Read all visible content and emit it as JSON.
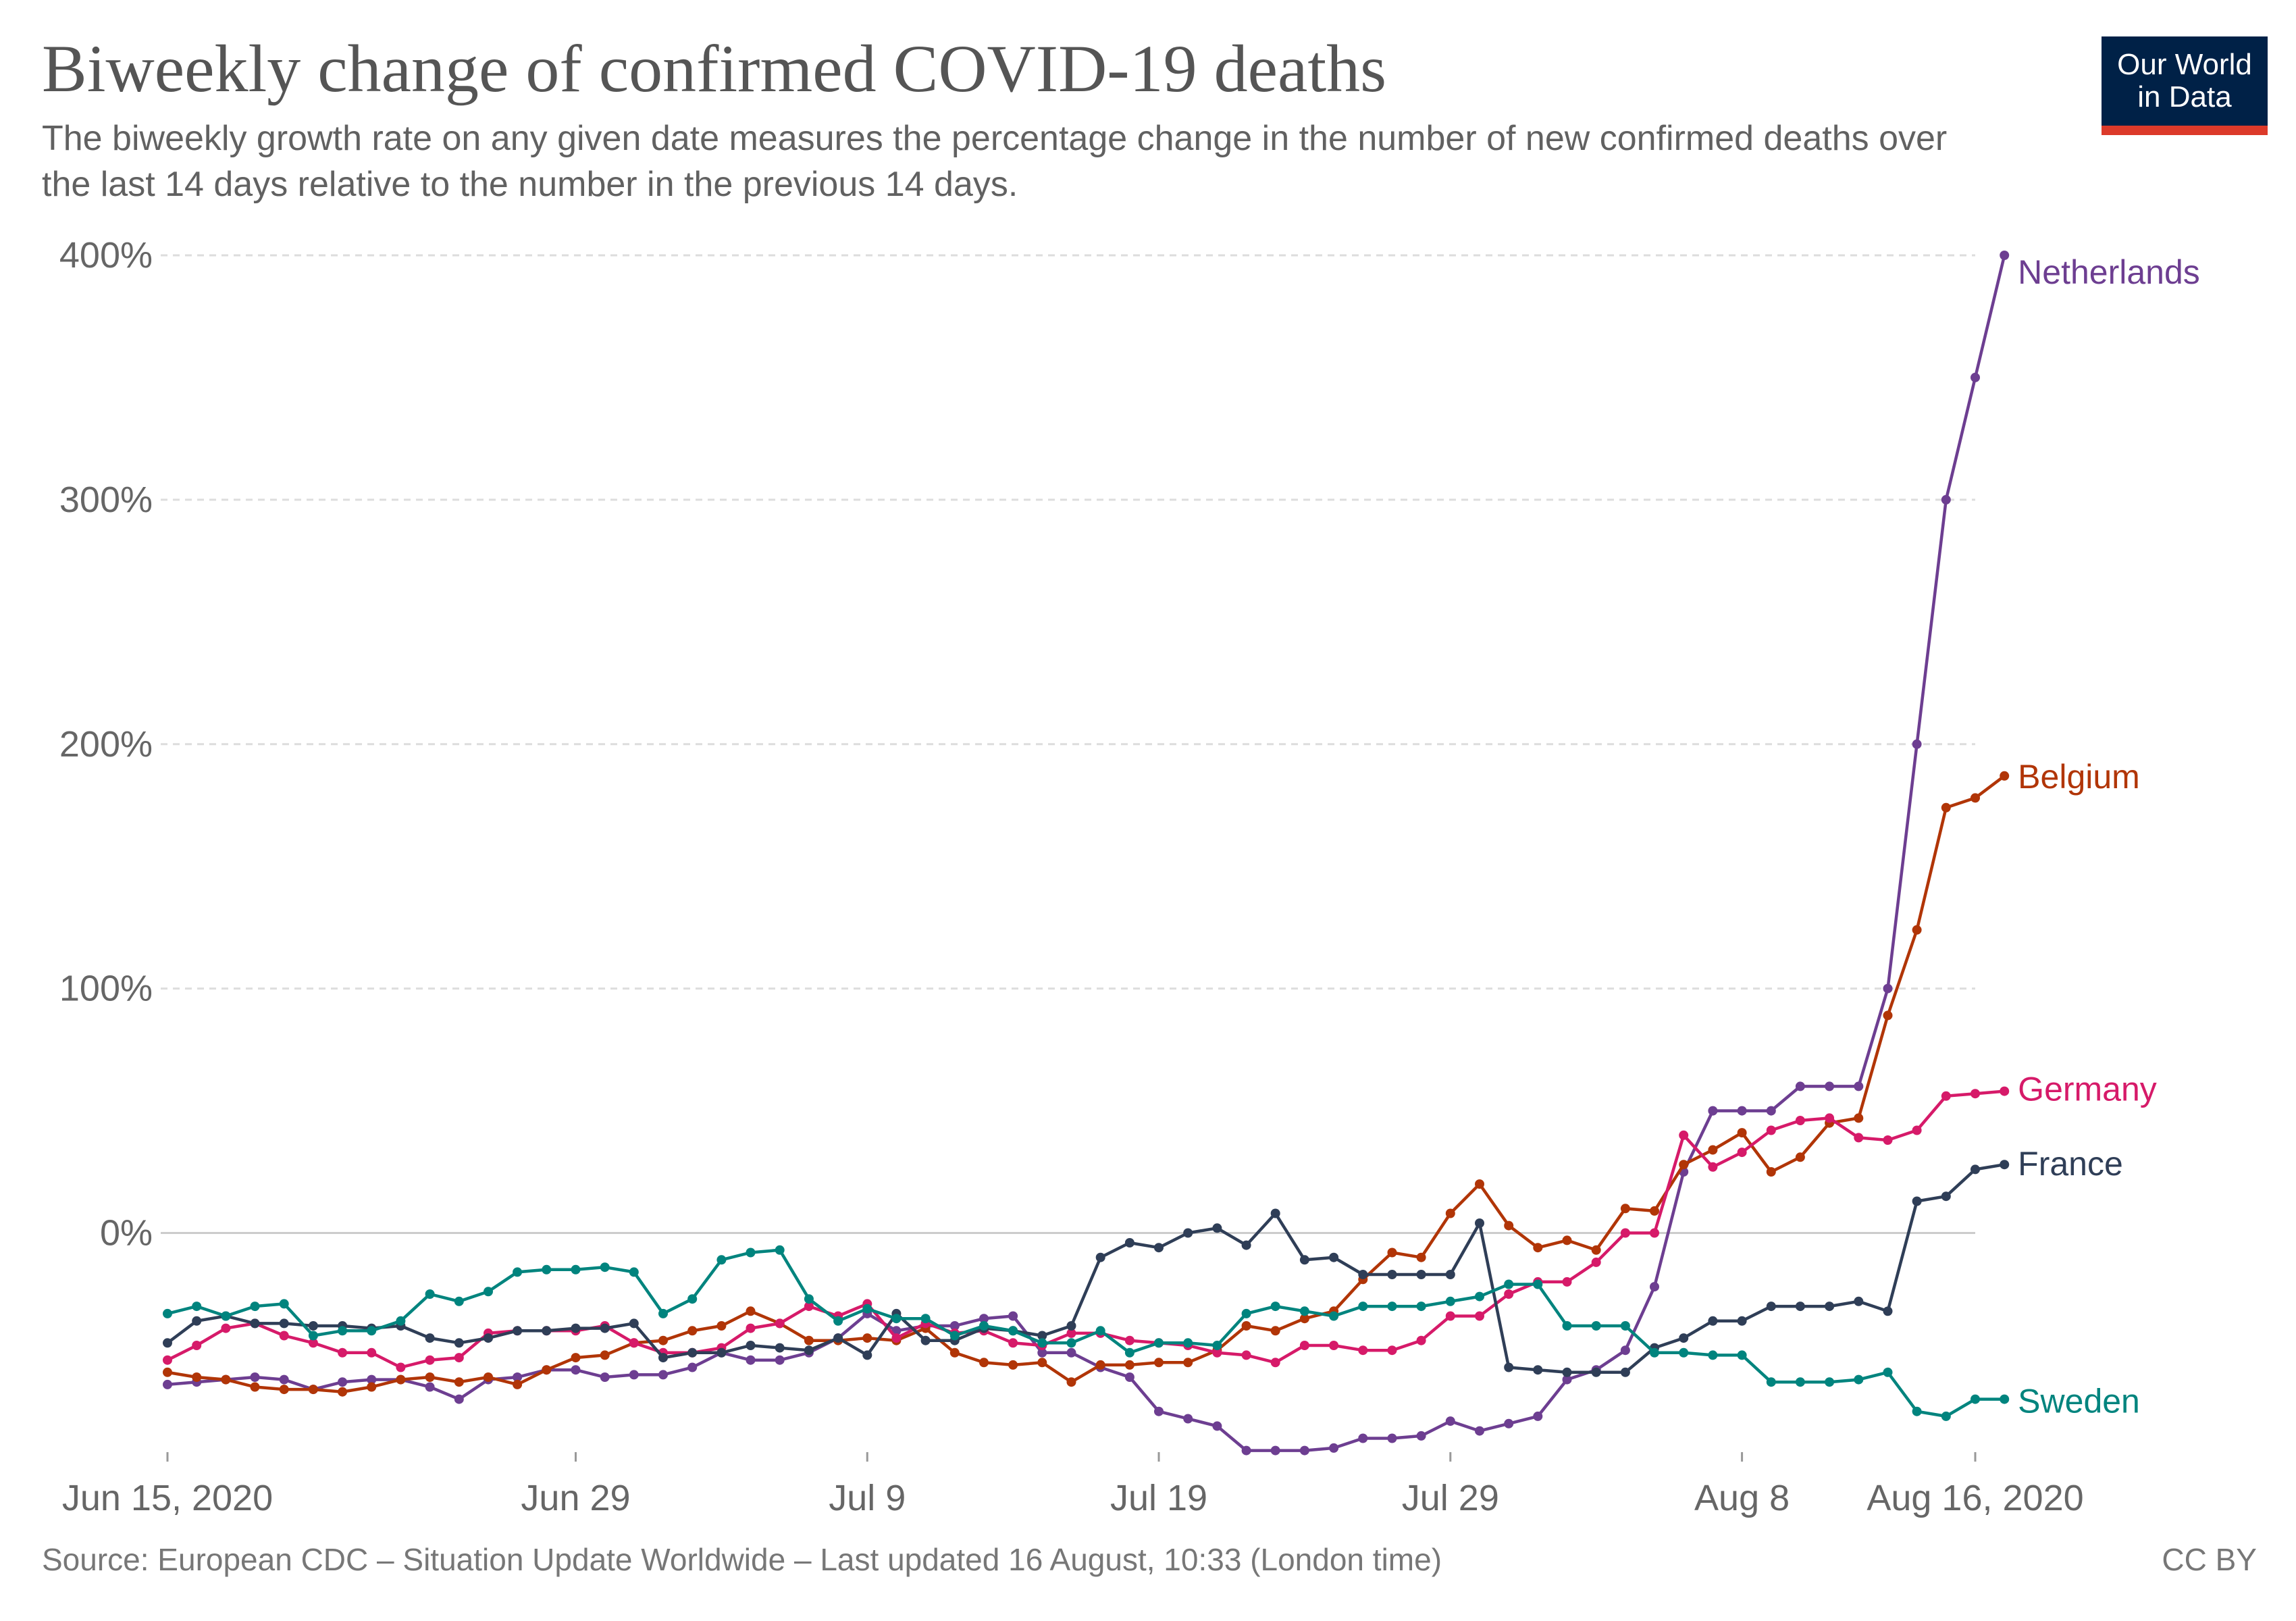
{
  "header": {
    "title": "Biweekly change of confirmed COVID-19 deaths",
    "subtitle": "The biweekly growth rate on any given date measures the percentage change in the number of new confirmed deaths over the last 14 days relative to the number in the previous 14 days.",
    "logo_text": "Our World\nin Data"
  },
  "footer": {
    "source": "Source: European CDC – Situation Update Worldwide – Last updated 16 August, 10:33 (London time)",
    "license": "CC BY"
  },
  "colors": {
    "background": "#ffffff",
    "logo_background": "#002147",
    "logo_accent": "#dc3a2a",
    "grid": "#dddddd",
    "zero_line": "#cccccc",
    "axis_text": "#666666"
  },
  "chart_data": {
    "type": "line",
    "title": "Biweekly change of confirmed COVID-19 deaths",
    "xlabel": "",
    "ylabel": "",
    "x_start": "2020-06-15",
    "x_end": "2020-08-16",
    "x_ticks": [
      {
        "date": "2020-06-15",
        "label": "Jun 15, 2020"
      },
      {
        "date": "2020-06-29",
        "label": "Jun 29"
      },
      {
        "date": "2020-07-09",
        "label": "Jul 9"
      },
      {
        "date": "2020-07-19",
        "label": "Jul 19"
      },
      {
        "date": "2020-07-29",
        "label": "Jul 29"
      },
      {
        "date": "2020-08-08",
        "label": "Aug 8"
      },
      {
        "date": "2020-08-16",
        "label": "Aug 16, 2020"
      }
    ],
    "y_ticks": [
      {
        "value": 0,
        "label": "0%"
      },
      {
        "value": 100,
        "label": "100%"
      },
      {
        "value": 200,
        "label": "200%"
      },
      {
        "value": 300,
        "label": "300%"
      },
      {
        "value": 400,
        "label": "400%"
      }
    ],
    "ylim": [
      -90,
      400
    ],
    "grid": true,
    "legend": "line-end labels",
    "series": [
      {
        "name": "Netherlands",
        "color": "#6d3e91",
        "values": [
          -62,
          -61,
          -60,
          -59,
          -60,
          -64,
          -61,
          -60,
          -60,
          -63,
          -68,
          -60,
          -59,
          -56,
          -56,
          -59,
          -58,
          -58,
          -55,
          -49,
          -52,
          -52,
          -49,
          -43,
          -33,
          -40,
          -38,
          -38,
          -35,
          -34,
          -49,
          -49,
          -55,
          -59,
          -73,
          -76,
          -79,
          -89,
          -89,
          -89,
          -88,
          -84,
          -84,
          -83,
          -77,
          -81,
          -78,
          -75,
          -60,
          -56,
          -48,
          -22,
          25,
          50,
          50,
          50,
          60,
          60,
          60,
          100,
          200,
          300,
          350,
          400
        ]
      },
      {
        "name": "Belgium",
        "color": "#b13507",
        "values": [
          -57,
          -59,
          -60,
          -63,
          -64,
          -64,
          -65,
          -63,
          -60,
          -59,
          -61,
          -59,
          -62,
          -56,
          -51,
          -50,
          -45,
          -44,
          -40,
          -38,
          -32,
          -37,
          -44,
          -44,
          -43,
          -44,
          -39,
          -49,
          -53,
          -54,
          -53,
          -61,
          -54,
          -54,
          -53,
          -53,
          -48,
          -38,
          -40,
          -35,
          -32,
          -19,
          -8,
          -10,
          8,
          20,
          3,
          -6,
          -3,
          -7,
          10,
          9,
          28,
          34,
          41,
          25,
          31,
          45,
          47,
          89,
          124,
          174,
          178,
          187
        ]
      },
      {
        "name": "Germany",
        "color": "#d61a69",
        "values": [
          -52,
          -46,
          -39,
          -37,
          -42,
          -45,
          -49,
          -49,
          -55,
          -52,
          -51,
          -41,
          -40,
          -40,
          -40,
          -38,
          -45,
          -49,
          -49,
          -47,
          -39,
          -37,
          -30,
          -34,
          -29,
          -43,
          -37,
          -41,
          -40,
          -45,
          -46,
          -41,
          -41,
          -44,
          -45,
          -46,
          -49,
          -50,
          -53,
          -46,
          -46,
          -48,
          -48,
          -44,
          -34,
          -34,
          -25,
          -20,
          -20,
          -12,
          0,
          0,
          40,
          27,
          33,
          42,
          46,
          47,
          39,
          38,
          42,
          56,
          57,
          58
        ]
      },
      {
        "name": "France",
        "color": "#2f3e57",
        "values": [
          -45,
          -36,
          -34,
          -37,
          -37,
          -38,
          -38,
          -39,
          -38,
          -43,
          -45,
          -43,
          -40,
          -40,
          -39,
          -39,
          -37,
          -51,
          -49,
          -49,
          -46,
          -47,
          -48,
          -43,
          -50,
          -33,
          -44,
          -44,
          -39,
          -40,
          -42,
          -38,
          -10,
          -4,
          -6,
          0,
          2,
          -5,
          8,
          -11,
          -10,
          -17,
          -17,
          -17,
          -17,
          4,
          -55,
          -56,
          -57,
          -57,
          -57,
          -47,
          -43,
          -36,
          -36,
          -30,
          -30,
          -30,
          -28,
          -32,
          13,
          15,
          26,
          28
        ]
      },
      {
        "name": "Sweden",
        "color": "#00847e",
        "values": [
          -33,
          -30,
          -34,
          -30,
          -29,
          -42,
          -40,
          -40,
          -36,
          -25,
          -28,
          -24,
          -16,
          -15,
          -15,
          -14,
          -16,
          -33,
          -27,
          -11,
          -8,
          -7,
          -27,
          -36,
          -31,
          -35,
          -35,
          -42,
          -38,
          -40,
          -45,
          -45,
          -40,
          -49,
          -45,
          -45,
          -46,
          -33,
          -30,
          -32,
          -34,
          -30,
          -30,
          -30,
          -28,
          -26,
          -21,
          -21,
          -38,
          -38,
          -38,
          -49,
          -49,
          -50,
          -50,
          -61,
          -61,
          -61,
          -60,
          -57,
          -73,
          -75,
          -68,
          -68
        ]
      }
    ]
  }
}
